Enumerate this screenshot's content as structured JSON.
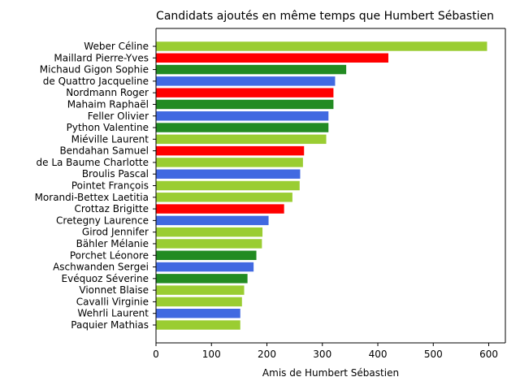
{
  "chart_data": {
    "type": "bar",
    "orientation": "horizontal",
    "title": "Candidats ajoutés en même temps que Humbert Sébastien",
    "xlabel": "Amis de Humbert Sébastien",
    "ylabel": "",
    "xlim": [
      0,
      630
    ],
    "xticks": [
      0,
      100,
      200,
      300,
      400,
      500,
      600
    ],
    "grid": false,
    "categories": [
      "Weber Céline",
      "Maillard Pierre-Yves",
      "Michaud Gigon Sophie",
      "de Quattro Jacqueline",
      "Nordmann Roger",
      "Mahaim Raphaël",
      "Feller Olivier",
      "Python Valentine",
      "Miéville Laurent",
      "Bendahan Samuel",
      "de La Baume Charlotte",
      "Broulis Pascal",
      "Pointet François",
      "Morandi-Bettex Laetitia",
      "Crottaz Brigitte",
      "Cretegny Laurence",
      "Girod Jennifer",
      "Bähler Mélanie",
      "Porchet Léonore",
      "Aschwanden Sergei",
      "Evéquoz Séverine",
      "Vionnet Blaise",
      "Cavalli Virginie",
      "Wehrli Laurent",
      "Paquier Mathias"
    ],
    "values": [
      597,
      419,
      343,
      323,
      320,
      320,
      311,
      311,
      307,
      267,
      265,
      260,
      259,
      246,
      231,
      203,
      192,
      191,
      181,
      176,
      165,
      159,
      155,
      152,
      152
    ],
    "colors": [
      "#9acd32",
      "#ff0000",
      "#228b22",
      "#4169e1",
      "#ff0000",
      "#228b22",
      "#4169e1",
      "#228b22",
      "#9acd32",
      "#ff0000",
      "#9acd32",
      "#4169e1",
      "#9acd32",
      "#9acd32",
      "#ff0000",
      "#4169e1",
      "#9acd32",
      "#9acd32",
      "#228b22",
      "#4169e1",
      "#228b22",
      "#9acd32",
      "#9acd32",
      "#4169e1",
      "#9acd32"
    ]
  }
}
